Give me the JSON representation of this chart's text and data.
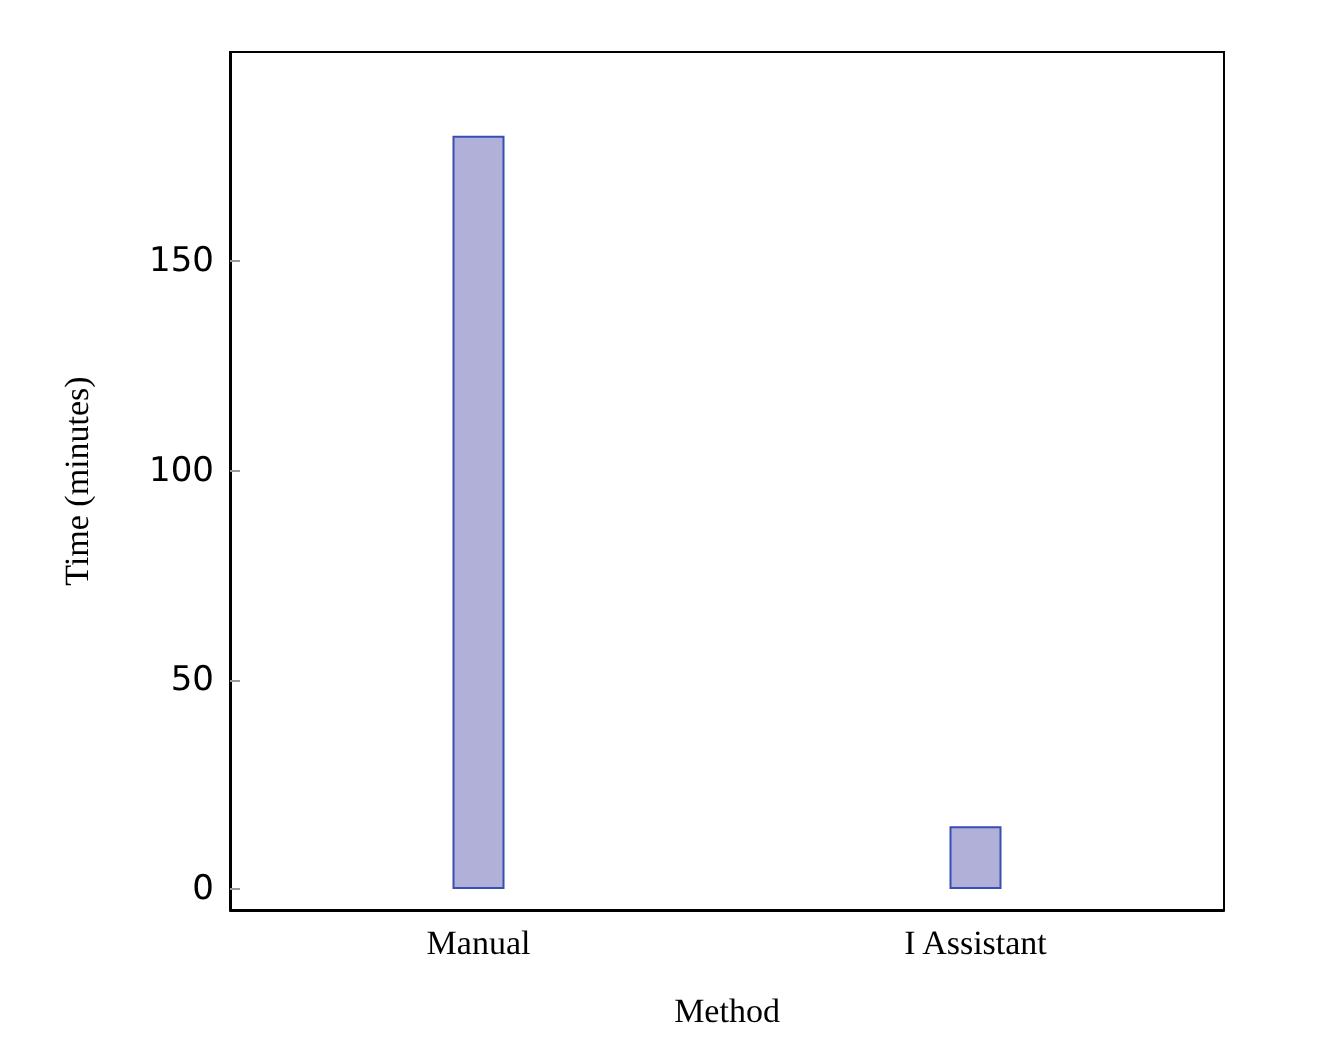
{
  "chart_data": {
    "type": "bar",
    "xlabel": "Method",
    "ylabel": "Time (minutes)",
    "categories": [
      "Manual",
      "I Assistant"
    ],
    "series": [
      {
        "color": "#b0b0d8",
        "values": [
          180,
          15
        ]
      }
    ],
    "ylim": [
      -5,
      200
    ],
    "yticks": [
      0,
      50,
      100,
      150
    ],
    "grid": false
  }
}
